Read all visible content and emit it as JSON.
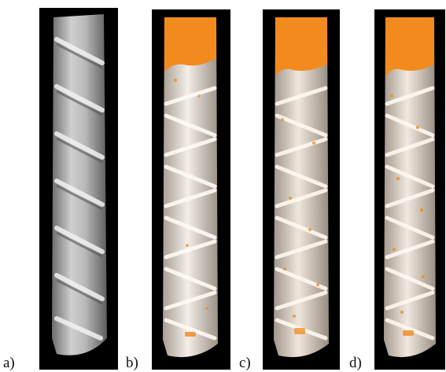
{
  "figure": {
    "panels": [
      {
        "label": "a)",
        "render": "grayscale-surface",
        "colors": {
          "surface": "#b9b9b9",
          "highlight": "#f2f2f2",
          "shadow": "#6d6d6d",
          "background": "#000000"
        }
      },
      {
        "label": "b)",
        "render": "surface-with-orange-overlay",
        "colors": {
          "surface": "#ece6df",
          "shadow": "#a89f95",
          "overlay": "#f28a1e",
          "background": "#000000"
        }
      },
      {
        "label": "c)",
        "render": "surface-with-orange-overlay",
        "colors": {
          "surface": "#e9e1d8",
          "shadow": "#a1968b",
          "overlay": "#f28a1e",
          "background": "#000000"
        }
      },
      {
        "label": "d)",
        "render": "surface-with-orange-overlay",
        "colors": {
          "surface": "#ece4db",
          "shadow": "#a59a8e",
          "overlay": "#f28a1e",
          "background": "#000000"
        }
      }
    ]
  }
}
